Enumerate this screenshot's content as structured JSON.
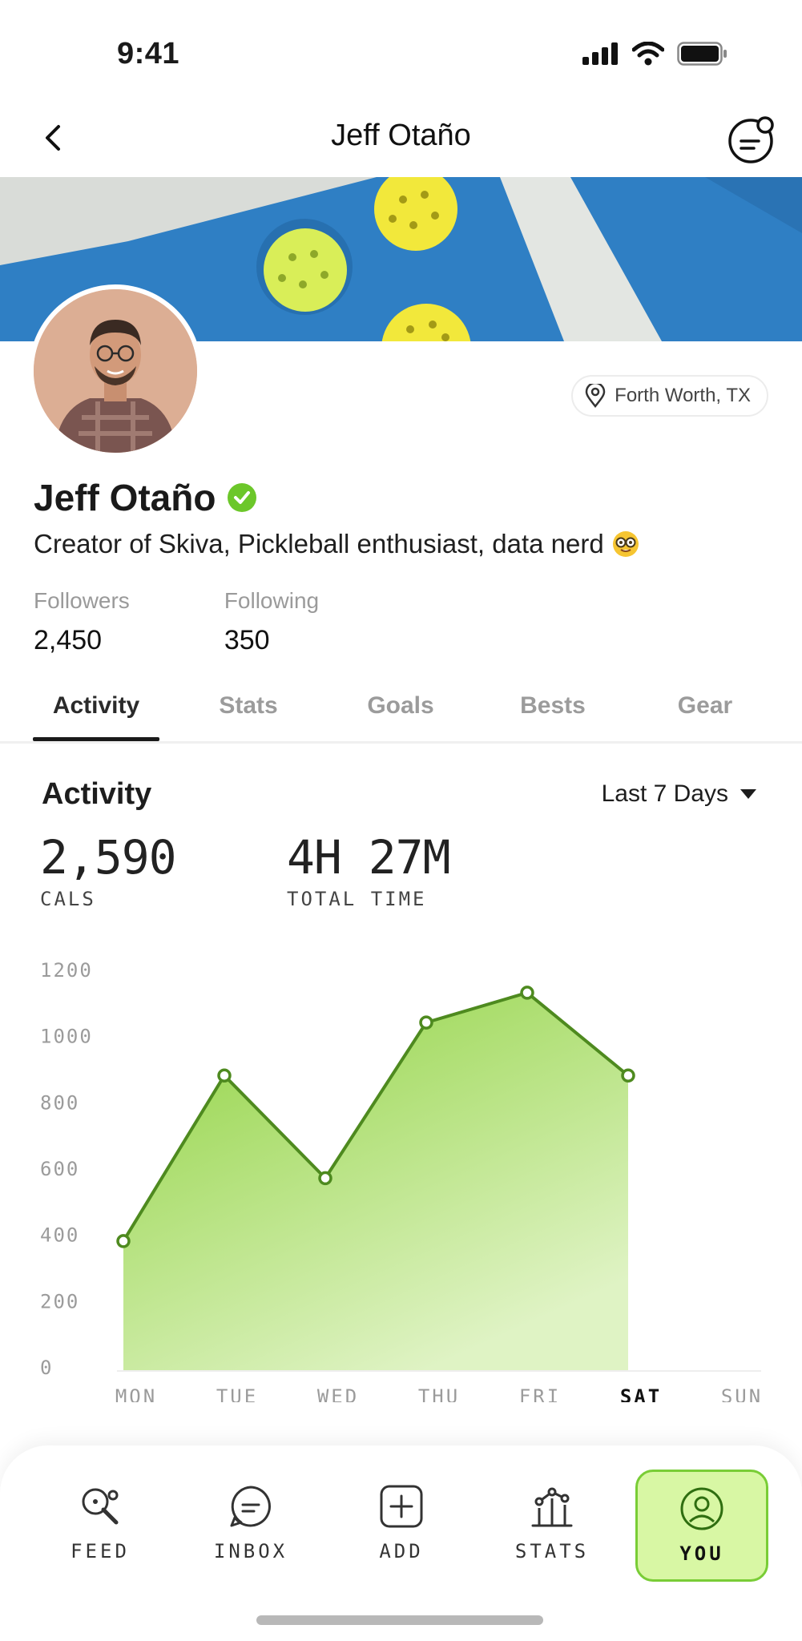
{
  "status_bar": {
    "time": "9:41"
  },
  "header": {
    "title": "Jeff Otaño"
  },
  "profile": {
    "name": "Jeff Otaño",
    "verified": true,
    "location": "Forth Worth, TX",
    "bio": "Creator of Skiva, Pickleball enthusiast, data nerd",
    "followers_label": "Followers",
    "followers_value": "2,450",
    "following_label": "Following",
    "following_value": "350"
  },
  "tabs": [
    {
      "label": "Activity",
      "active": true
    },
    {
      "label": "Stats",
      "active": false
    },
    {
      "label": "Goals",
      "active": false
    },
    {
      "label": "Bests",
      "active": false
    },
    {
      "label": "Gear",
      "active": false
    }
  ],
  "activity": {
    "title": "Activity",
    "range": "Last 7 Days",
    "cals_value": "2,590",
    "cals_label": "CALS",
    "time_value": "4H 27M",
    "time_label": "TOTAL TIME"
  },
  "chart_data": {
    "type": "area",
    "categories": [
      "MON",
      "TUE",
      "WED",
      "THU",
      "FRI",
      "SAT",
      "SUN"
    ],
    "values": [
      380,
      880,
      570,
      1040,
      1130,
      880,
      null
    ],
    "highlight_category": "SAT",
    "yticks": [
      0,
      200,
      400,
      600,
      800,
      1000,
      1200
    ],
    "ylim": [
      0,
      1200
    ],
    "grid": false,
    "colors": {
      "line": "#4e8a1f",
      "fill_top": "#8fd23f",
      "fill_bottom": "#dff3c4",
      "point_fill": "#ffffff"
    }
  },
  "bottom_nav": [
    {
      "label": "FEED",
      "icon": "pickleball-paddle-icon",
      "active": false
    },
    {
      "label": "INBOX",
      "icon": "chat-bubble-icon",
      "active": false
    },
    {
      "label": "ADD",
      "icon": "plus-square-icon",
      "active": false
    },
    {
      "label": "STATS",
      "icon": "stats-chart-icon",
      "active": false
    },
    {
      "label": "YOU",
      "icon": "user-circle-icon",
      "active": true
    }
  ],
  "colors": {
    "accent": "#8fd23f",
    "accent_soft": "#d8f7a4",
    "verified": "#6cc72a"
  }
}
